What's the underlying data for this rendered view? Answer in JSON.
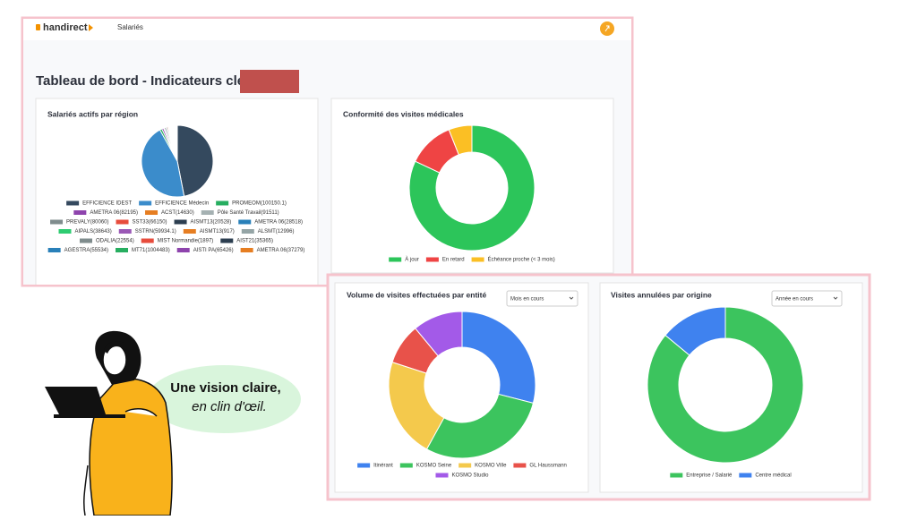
{
  "header": {
    "logo": "handirect",
    "nav": "Salariés"
  },
  "page_title": "Tableau de bord - Indicateurs clés -",
  "speech": {
    "line1": "Une vision claire,",
    "line2": "en clin d'œil."
  },
  "chart_data": [
    {
      "type": "pie",
      "title": "Salariés actifs par région",
      "categories": [
        "EFFICIENCE IDEST",
        "EFFICIENCE Médecin",
        "PROMEOM(100150.1)",
        "AMETRA 06(82195)",
        "ACST(14630)",
        "Pôle Santé Travail(91511)",
        "PREVALY(80060)",
        "SST33(66150)",
        "AISMT13(20528)",
        "AMETRA 06(28518)",
        "AIPALS(38643)",
        "SSTRN(59934.1)",
        "AISMT13(917)",
        "ALSMT(12996)",
        "ODALIA(22554)",
        "MIST Normandie(1897)",
        "AIST21(35365)",
        "AGESTRA(55534)",
        "MT71(1004483)",
        "AISTI PA(65426)",
        "AMETRA 06(37279)"
      ],
      "values": [
        47,
        45,
        1,
        0.8,
        0.3,
        0.8,
        0.6,
        0.5,
        0.3,
        0.3,
        0.4,
        0.4,
        0.2,
        0.2,
        0.3,
        0.2,
        0.3,
        0.4,
        0.4,
        0.4,
        0.3
      ],
      "colors": [
        "#34495e",
        "#3b8ccb",
        "#27ae60",
        "#8e44ad",
        "#e67e22",
        "#a5b1b2",
        "#7f8c8d",
        "#e74c3c",
        "#2c3e50",
        "#2980b9",
        "#2ecc71",
        "#9b59b6",
        "#e67e22",
        "#95a5a6",
        "#7f8c8d",
        "#e74c3c",
        "#2c3e50",
        "#2980b9",
        "#27ae60",
        "#8e44ad",
        "#e67e22"
      ]
    },
    {
      "type": "donut",
      "title": "Conformité des visites médicales",
      "categories": [
        "À jour",
        "En retard",
        "Échéance proche (< 3 mois)"
      ],
      "values": [
        82,
        12,
        6
      ],
      "colors": [
        "#2cc55a",
        "#ef4444",
        "#fbbf24"
      ]
    },
    {
      "type": "donut",
      "title": "Volume de visites effectuées par entité",
      "filter": "Mois en cours",
      "categories": [
        "Itinérant",
        "KOSMO Seine",
        "KOSMO Ville",
        "GL Haussmann",
        "KOSMO Studio"
      ],
      "values": [
        29,
        29,
        22,
        9,
        11
      ],
      "colors": [
        "#3f82ef",
        "#3cc45e",
        "#f4c94c",
        "#e8524a",
        "#a35ae8"
      ]
    },
    {
      "type": "donut",
      "title": "Visites annulées par origine",
      "filter": "Année en cours",
      "categories": [
        "Entreprise / Salarié",
        "Centre médical"
      ],
      "values": [
        86,
        14
      ],
      "colors": [
        "#3cc45e",
        "#3f82ef"
      ]
    }
  ]
}
